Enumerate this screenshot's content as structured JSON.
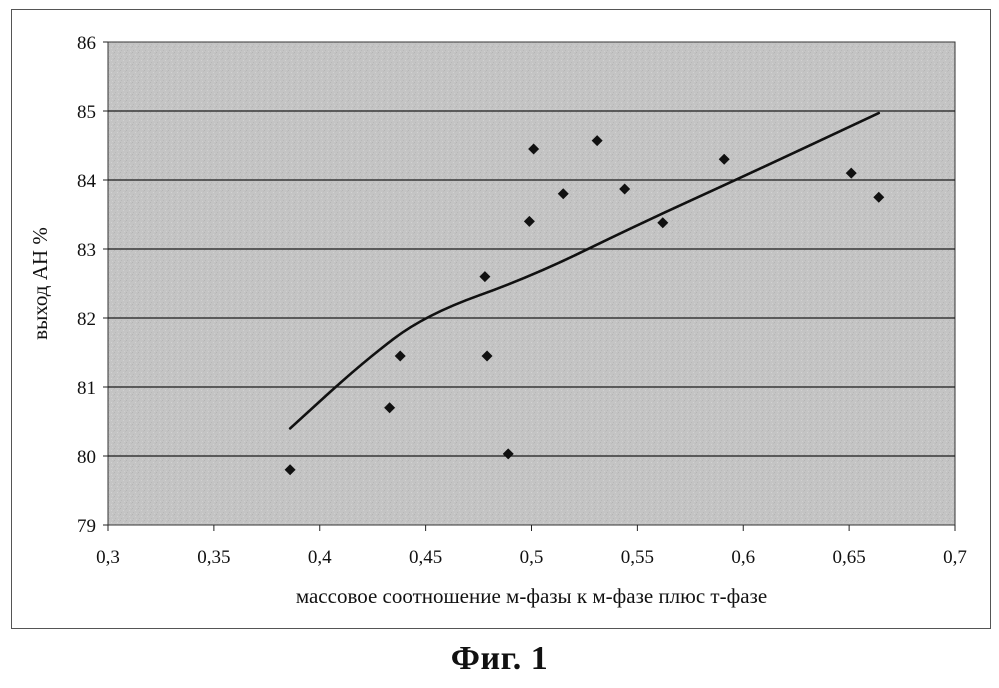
{
  "chart_data": {
    "type": "scatter",
    "title": "",
    "xlabel": "массовое соотношение м-фазы к м-фазе плюс т-фазе",
    "ylabel": "выход АН %",
    "xlim": [
      0.3,
      0.7
    ],
    "ylim": [
      79,
      86
    ],
    "x_ticks": [
      "0,3",
      "0,35",
      "0,4",
      "0,45",
      "0,5",
      "0,55",
      "0,6",
      "0,65",
      "0,7"
    ],
    "x_tick_values": [
      0.3,
      0.35,
      0.4,
      0.45,
      0.5,
      0.55,
      0.6,
      0.65,
      0.7
    ],
    "y_ticks": [
      "79",
      "80",
      "81",
      "82",
      "83",
      "84",
      "85",
      "86"
    ],
    "y_tick_values": [
      79,
      80,
      81,
      82,
      83,
      84,
      85,
      86
    ],
    "grid": "horizontal",
    "legend": "none",
    "series": [
      {
        "type": "scatter",
        "marker": "diamond",
        "x": [
          0.386,
          0.433,
          0.438,
          0.478,
          0.479,
          0.489,
          0.499,
          0.501,
          0.515,
          0.531,
          0.544,
          0.562,
          0.591,
          0.651,
          0.664
        ],
        "y": [
          79.8,
          80.7,
          81.45,
          82.6,
          81.45,
          80.03,
          83.4,
          84.45,
          83.8,
          84.57,
          83.87,
          83.38,
          84.3,
          84.1,
          83.75
        ]
      },
      {
        "type": "trendline",
        "x": [
          0.386,
          0.42,
          0.45,
          0.5,
          0.55,
          0.6,
          0.664
        ],
        "y": [
          80.4,
          81.35,
          82.05,
          82.6,
          83.35,
          84.05,
          84.97
        ]
      }
    ],
    "colors": {
      "plot_background": "#c2c2c2",
      "gridline": "#1a1a1a",
      "marker": "#111111",
      "trendline": "#111111"
    }
  },
  "caption": "Фиг. 1"
}
